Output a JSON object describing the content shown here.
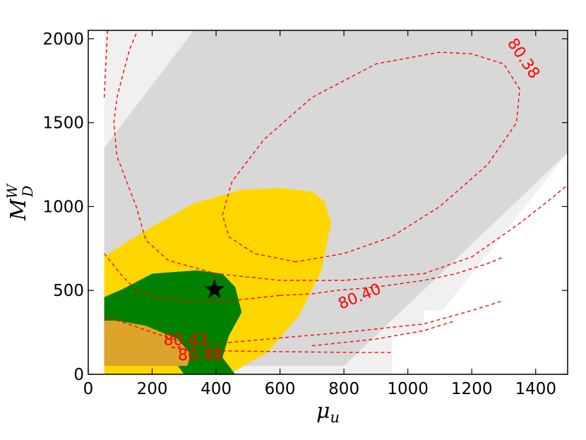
{
  "chart_data": {
    "type": "contour",
    "xlabel": "μ",
    "xlabel_sub": "u",
    "ylabel": "M",
    "ylabel_sup": "W",
    "ylabel_sub": "D",
    "xlim": [
      0,
      1500
    ],
    "ylim": [
      0,
      2050
    ],
    "xticks": [
      0,
      200,
      400,
      600,
      800,
      1000,
      1200,
      1400
    ],
    "yticks": [
      0,
      500,
      1000,
      1500,
      2000
    ],
    "colors": {
      "excluded_light": "#f0f0f0",
      "allowed_gray": "#d8d8d8",
      "dark_gray": "#b2b2b2",
      "yellow": "#ffd700",
      "green": "#008000",
      "gold_orange": "#dca42a",
      "contour": "#ff0000",
      "star": "#000000"
    },
    "regions": {
      "light_gray_band": [
        [
          50,
          0
        ],
        [
          950,
          0
        ],
        [
          1500,
          1320
        ],
        [
          1500,
          2050
        ],
        [
          50,
          2050
        ]
      ],
      "gray_band": [
        [
          50,
          50
        ],
        [
          800,
          50
        ],
        [
          1500,
          1320
        ],
        [
          1500,
          2050
        ],
        [
          330,
          2050
        ],
        [
          50,
          1350
        ]
      ],
      "dark_gray_strip": [
        [
          50,
          50
        ],
        [
          370,
          50
        ],
        [
          330,
          110
        ],
        [
          50,
          110
        ]
      ],
      "yellow_region": [
        [
          50,
          0
        ],
        [
          440,
          0
        ],
        [
          560,
          130
        ],
        [
          660,
          350
        ],
        [
          730,
          620
        ],
        [
          760,
          900
        ],
        [
          740,
          1030
        ],
        [
          700,
          1090
        ],
        [
          600,
          1110
        ],
        [
          480,
          1100
        ],
        [
          330,
          1020
        ],
        [
          200,
          880
        ],
        [
          80,
          740
        ],
        [
          50,
          700
        ]
      ],
      "green_region": [
        [
          50,
          250
        ],
        [
          130,
          220
        ],
        [
          230,
          180
        ],
        [
          300,
          0
        ],
        [
          460,
          0
        ],
        [
          420,
          100
        ],
        [
          440,
          230
        ],
        [
          480,
          370
        ],
        [
          460,
          520
        ],
        [
          420,
          600
        ],
        [
          340,
          620
        ],
        [
          200,
          600
        ],
        [
          110,
          510
        ],
        [
          50,
          460
        ]
      ],
      "gold_region": [
        [
          50,
          50
        ],
        [
          310,
          50
        ],
        [
          320,
          120
        ],
        [
          280,
          210
        ],
        [
          180,
          290
        ],
        [
          90,
          320
        ],
        [
          50,
          320
        ]
      ],
      "white_notch": [
        [
          950,
          0
        ],
        [
          1500,
          0
        ],
        [
          1500,
          950
        ],
        [
          1450,
          950
        ],
        [
          1450,
          850
        ],
        [
          1350,
          850
        ],
        [
          1350,
          650
        ],
        [
          1250,
          650
        ],
        [
          1250,
          480
        ],
        [
          1150,
          480
        ],
        [
          1150,
          380
        ],
        [
          1050,
          380
        ],
        [
          1050,
          240
        ],
        [
          950,
          240
        ]
      ]
    },
    "contours": [
      {
        "label": "80.38",
        "points": [
          [
            50,
            1650
          ],
          [
            60,
            2050
          ]
        ]
      },
      {
        "label": "80.38",
        "points": [
          [
            150,
            2030
          ],
          [
            130,
            1940
          ],
          [
            110,
            1800
          ],
          [
            90,
            1650
          ],
          [
            80,
            1500
          ],
          [
            90,
            1300
          ],
          [
            150,
            1000
          ],
          [
            180,
            800
          ],
          [
            250,
            680
          ],
          [
            400,
            600
          ],
          [
            600,
            560
          ],
          [
            800,
            560
          ],
          [
            1050,
            600
          ],
          [
            1200,
            700
          ],
          [
            1350,
            900
          ],
          [
            1450,
            1050
          ],
          [
            1500,
            1130
          ]
        ]
      },
      {
        "label": "80.38",
        "points": [
          [
            650,
            670
          ],
          [
            520,
            720
          ],
          [
            440,
            820
          ],
          [
            420,
            950
          ],
          [
            450,
            1150
          ],
          [
            550,
            1400
          ],
          [
            700,
            1650
          ],
          [
            900,
            1850
          ],
          [
            1100,
            1920
          ],
          [
            1200,
            1910
          ],
          [
            1300,
            1850
          ],
          [
            1350,
            1700
          ],
          [
            1340,
            1500
          ],
          [
            1250,
            1250
          ],
          [
            1100,
            1000
          ],
          [
            950,
            820
          ],
          [
            800,
            720
          ],
          [
            650,
            670
          ]
        ]
      },
      {
        "label": "80.40",
        "points": [
          [
            600,
            470
          ],
          [
            700,
            480
          ],
          [
            780,
            500
          ],
          [
            900,
            520
          ],
          [
            1050,
            560
          ],
          [
            1150,
            600
          ],
          [
            1250,
            660
          ],
          [
            1300,
            700
          ]
        ]
      },
      {
        "label": "80.40",
        "points": [
          [
            50,
            720
          ],
          [
            100,
            600
          ],
          [
            150,
            500
          ],
          [
            220,
            460
          ],
          [
            330,
            430
          ],
          [
            450,
            440
          ],
          [
            600,
            470
          ]
        ]
      },
      {
        "label": "80.43",
        "points": [
          [
            50,
            340
          ],
          [
            110,
            310
          ],
          [
            200,
            250
          ],
          [
            250,
            220
          ],
          [
            280,
            200
          ]
        ]
      },
      {
        "label": "80.48",
        "points": [
          [
            260,
            160
          ],
          [
            300,
            150
          ],
          [
            400,
            140
          ],
          [
            600,
            135
          ],
          [
            850,
            130
          ],
          [
            950,
            130
          ]
        ]
      },
      {
        "label": "80.48",
        "points": [
          [
            260,
            160
          ],
          [
            500,
            200
          ],
          [
            800,
            250
          ],
          [
            1050,
            300
          ],
          [
            1200,
            380
          ],
          [
            1300,
            440
          ]
        ]
      },
      {
        "label": "80.48",
        "points": [
          [
            700,
            170
          ],
          [
            900,
            210
          ],
          [
            1050,
            260
          ],
          [
            1150,
            320
          ]
        ]
      }
    ],
    "contour_labels": [
      {
        "text": "80.38",
        "x": 1360,
        "y": 1880,
        "angle": 56
      },
      {
        "text": "80.40",
        "x": 850,
        "y": 460,
        "angle": -22
      },
      {
        "text": "80.43",
        "x": 305,
        "y": 200,
        "angle": 0
      },
      {
        "text": "80.48",
        "x": 350,
        "y": 110,
        "angle": 0
      }
    ],
    "best_fit_star": {
      "x": 395,
      "y": 505
    }
  }
}
